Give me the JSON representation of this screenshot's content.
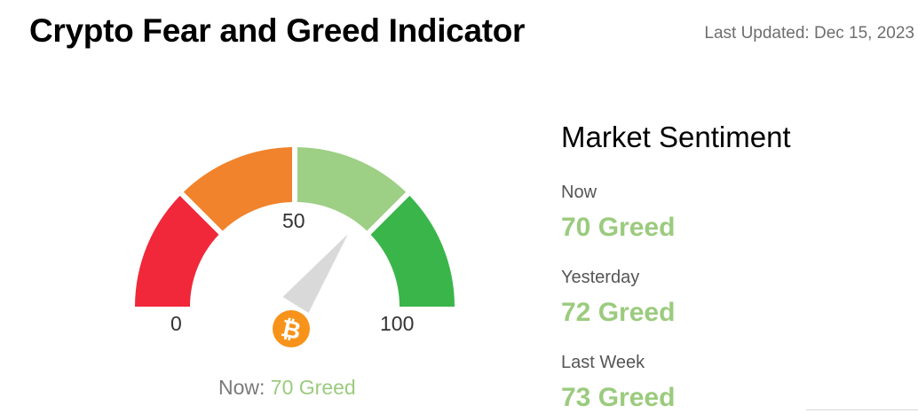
{
  "header": {
    "title": "Crypto Fear and Greed Indicator",
    "last_updated": "Last Updated: Dec 15, 2023"
  },
  "gauge": {
    "value": 70,
    "min": 0,
    "max": 100,
    "min_label": "0",
    "mid_label": "50",
    "max_label": "100",
    "segment_colors": [
      "#f0283a",
      "#f0832c",
      "#9dcf85",
      "#3ab54a"
    ],
    "needle_color": "#d9d9d9",
    "badge_icon": "bitcoin-icon",
    "badge_color": "#f7931a",
    "now_prefix": "Now:",
    "now_value": "70 Greed"
  },
  "sentiment": {
    "title": "Market Sentiment",
    "items": [
      {
        "label": "Now",
        "value": "70 Greed"
      },
      {
        "label": "Yesterday",
        "value": "72 Greed"
      },
      {
        "label": "Last Week",
        "value": "73 Greed"
      }
    ],
    "value_color": "#9bcb7e"
  }
}
